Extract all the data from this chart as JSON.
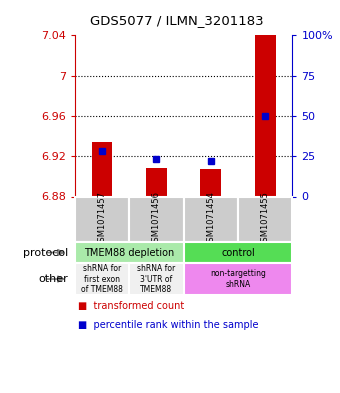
{
  "title": "GDS5077 / ILMN_3201183",
  "samples": [
    "GSM1071457",
    "GSM1071456",
    "GSM1071454",
    "GSM1071455"
  ],
  "bar_values": [
    6.934,
    6.908,
    6.907,
    7.04
  ],
  "bar_base": 6.88,
  "percentile_values": [
    28,
    23,
    22,
    50
  ],
  "ylim": [
    6.88,
    7.04
  ],
  "yticks": [
    6.88,
    6.92,
    6.96,
    7.0,
    7.04
  ],
  "ytick_labels": [
    "6.88",
    "6.92",
    "6.96",
    "7",
    "7.04"
  ],
  "right_yticks": [
    0,
    25,
    50,
    75,
    100
  ],
  "right_ytick_labels": [
    "0",
    "25",
    "50",
    "75",
    "100%"
  ],
  "bar_color": "#cc0000",
  "dot_color": "#0000cc",
  "grid_yticks": [
    6.92,
    6.96,
    7.0
  ],
  "protocol_row": [
    {
      "label": "TMEM88 depletion",
      "span": [
        0,
        2
      ],
      "color": "#aaeaaa"
    },
    {
      "label": "control",
      "span": [
        2,
        4
      ],
      "color": "#55dd55"
    }
  ],
  "other_row": [
    {
      "label": "shRNA for\nfirst exon\nof TMEM88",
      "span": [
        0,
        1
      ],
      "color": "#f0f0f0"
    },
    {
      "label": "shRNA for\n3'UTR of\nTMEM88",
      "span": [
        1,
        2
      ],
      "color": "#f0f0f0"
    },
    {
      "label": "non-targetting\nshRNA",
      "span": [
        2,
        4
      ],
      "color": "#ee88ee"
    }
  ],
  "sample_row_color": "#cccccc",
  "arrow_color": "#888888",
  "legend_items": [
    {
      "color": "#cc0000",
      "label": "transformed count"
    },
    {
      "color": "#0000cc",
      "label": "percentile rank within the sample"
    }
  ]
}
